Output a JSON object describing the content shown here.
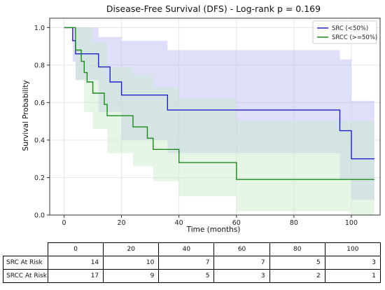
{
  "chart_data": {
    "type": "line",
    "title": "Disease-Free Survival (DFS) - Log-rank p = 0.169",
    "xlabel": "Time (months)",
    "ylabel": "Survival Probability",
    "xlim": [
      -5,
      110
    ],
    "ylim": [
      0,
      1.05
    ],
    "x_ticks": [
      "0",
      "20",
      "40",
      "60",
      "80",
      "100"
    ],
    "y_ticks": [
      "0.0",
      "0.2",
      "0.4",
      "0.6",
      "0.8",
      "1.0"
    ],
    "grid": true,
    "legend_position": "top-right",
    "series": [
      {
        "name": "SRC (<50%)",
        "color": "#1f1fcc",
        "ci_color": "#b8b8f5",
        "steps": [
          [
            0,
            1.0
          ],
          [
            3,
            0.93
          ],
          [
            4,
            0.86
          ],
          [
            8,
            0.86
          ],
          [
            12,
            0.79
          ],
          [
            16,
            0.71
          ],
          [
            20,
            0.64
          ],
          [
            36,
            0.56
          ],
          [
            96,
            0.45
          ],
          [
            100,
            0.3
          ],
          [
            108,
            0.3
          ]
        ],
        "ci_upper": [
          [
            0,
            1.0
          ],
          [
            8,
            1.0
          ],
          [
            12,
            0.95
          ],
          [
            20,
            0.93
          ],
          [
            36,
            0.88
          ],
          [
            96,
            0.83
          ],
          [
            100,
            0.61
          ],
          [
            108,
            0.61
          ]
        ],
        "ci_lower": [
          [
            0,
            1.0
          ],
          [
            3,
            0.82
          ],
          [
            4,
            0.72
          ],
          [
            12,
            0.55
          ],
          [
            20,
            0.4
          ],
          [
            36,
            0.33
          ],
          [
            96,
            0.19
          ],
          [
            100,
            0.08
          ],
          [
            108,
            0.08
          ]
        ]
      },
      {
        "name": "SRCC (>=50%)",
        "color": "#1a8a1a",
        "ci_color": "#c8e8c8",
        "steps": [
          [
            0,
            1.0
          ],
          [
            4,
            0.88
          ],
          [
            6,
            0.82
          ],
          [
            7,
            0.76
          ],
          [
            8,
            0.71
          ],
          [
            10,
            0.65
          ],
          [
            14,
            0.59
          ],
          [
            15,
            0.53
          ],
          [
            24,
            0.47
          ],
          [
            29,
            0.41
          ],
          [
            31,
            0.35
          ],
          [
            40,
            0.28
          ],
          [
            60,
            0.19
          ],
          [
            108,
            0.19
          ]
        ],
        "ci_upper": [
          [
            0,
            1.0
          ],
          [
            6,
            1.0
          ],
          [
            10,
            0.92
          ],
          [
            15,
            0.79
          ],
          [
            24,
            0.75
          ],
          [
            31,
            0.68
          ],
          [
            40,
            0.62
          ],
          [
            60,
            0.5
          ],
          [
            108,
            0.5
          ]
        ],
        "ci_lower": [
          [
            0,
            1.0
          ],
          [
            4,
            0.72
          ],
          [
            7,
            0.55
          ],
          [
            10,
            0.46
          ],
          [
            15,
            0.33
          ],
          [
            24,
            0.26
          ],
          [
            31,
            0.18
          ],
          [
            40,
            0.1
          ],
          [
            60,
            0.02
          ],
          [
            100,
            0.0
          ],
          [
            108,
            0.0
          ]
        ]
      }
    ]
  },
  "risk_table": {
    "header": [
      "0",
      "20",
      "40",
      "60",
      "80",
      "100"
    ],
    "rows": [
      {
        "label": "SRC At Risk",
        "values": [
          "14",
          "10",
          "7",
          "7",
          "5",
          "3"
        ]
      },
      {
        "label": "SRCC At Risk",
        "values": [
          "17",
          "9",
          "5",
          "3",
          "2",
          "1"
        ]
      }
    ]
  }
}
